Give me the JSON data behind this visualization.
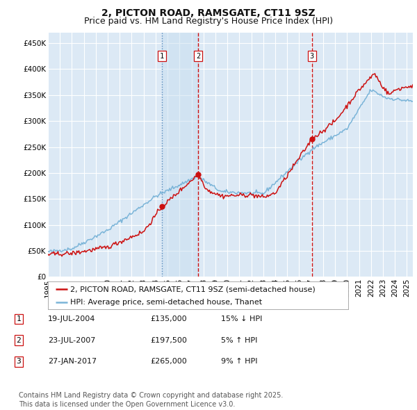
{
  "title": "2, PICTON ROAD, RAMSGATE, CT11 9SZ",
  "subtitle": "Price paid vs. HM Land Registry's House Price Index (HPI)",
  "ylabel_ticks": [
    "£0",
    "£50K",
    "£100K",
    "£150K",
    "£200K",
    "£250K",
    "£300K",
    "£350K",
    "£400K",
    "£450K"
  ],
  "ytick_vals": [
    0,
    50000,
    100000,
    150000,
    200000,
    250000,
    300000,
    350000,
    400000,
    450000
  ],
  "ylim": [
    0,
    470000
  ],
  "xlim_start": 1995.0,
  "xlim_end": 2025.5,
  "background_color": "#dce9f5",
  "grid_color": "#ffffff",
  "line_color_hpi": "#7ab4d8",
  "line_color_price": "#cc1111",
  "transaction_dates": [
    2004.54,
    2007.55,
    2017.07
  ],
  "transaction_line_styles": [
    "dotted_blue",
    "dashed_red",
    "dashed_red"
  ],
  "transaction_labels": [
    "1",
    "2",
    "3"
  ],
  "transaction_prices": [
    135000,
    197500,
    265000
  ],
  "shade_between": [
    0,
    1
  ],
  "legend_label_price": "2, PICTON ROAD, RAMSGATE, CT11 9SZ (semi-detached house)",
  "legend_label_hpi": "HPI: Average price, semi-detached house, Thanet",
  "table_rows": [
    [
      "1",
      "19-JUL-2004",
      "£135,000",
      "15% ↓ HPI"
    ],
    [
      "2",
      "23-JUL-2007",
      "£197,500",
      "5% ↑ HPI"
    ],
    [
      "3",
      "27-JAN-2017",
      "£265,000",
      "9% ↑ HPI"
    ]
  ],
  "footer_text": "Contains HM Land Registry data © Crown copyright and database right 2025.\nThis data is licensed under the Open Government Licence v3.0.",
  "title_fontsize": 10,
  "subtitle_fontsize": 9,
  "tick_fontsize": 7.5,
  "legend_fontsize": 8,
  "table_fontsize": 8,
  "footer_fontsize": 7
}
